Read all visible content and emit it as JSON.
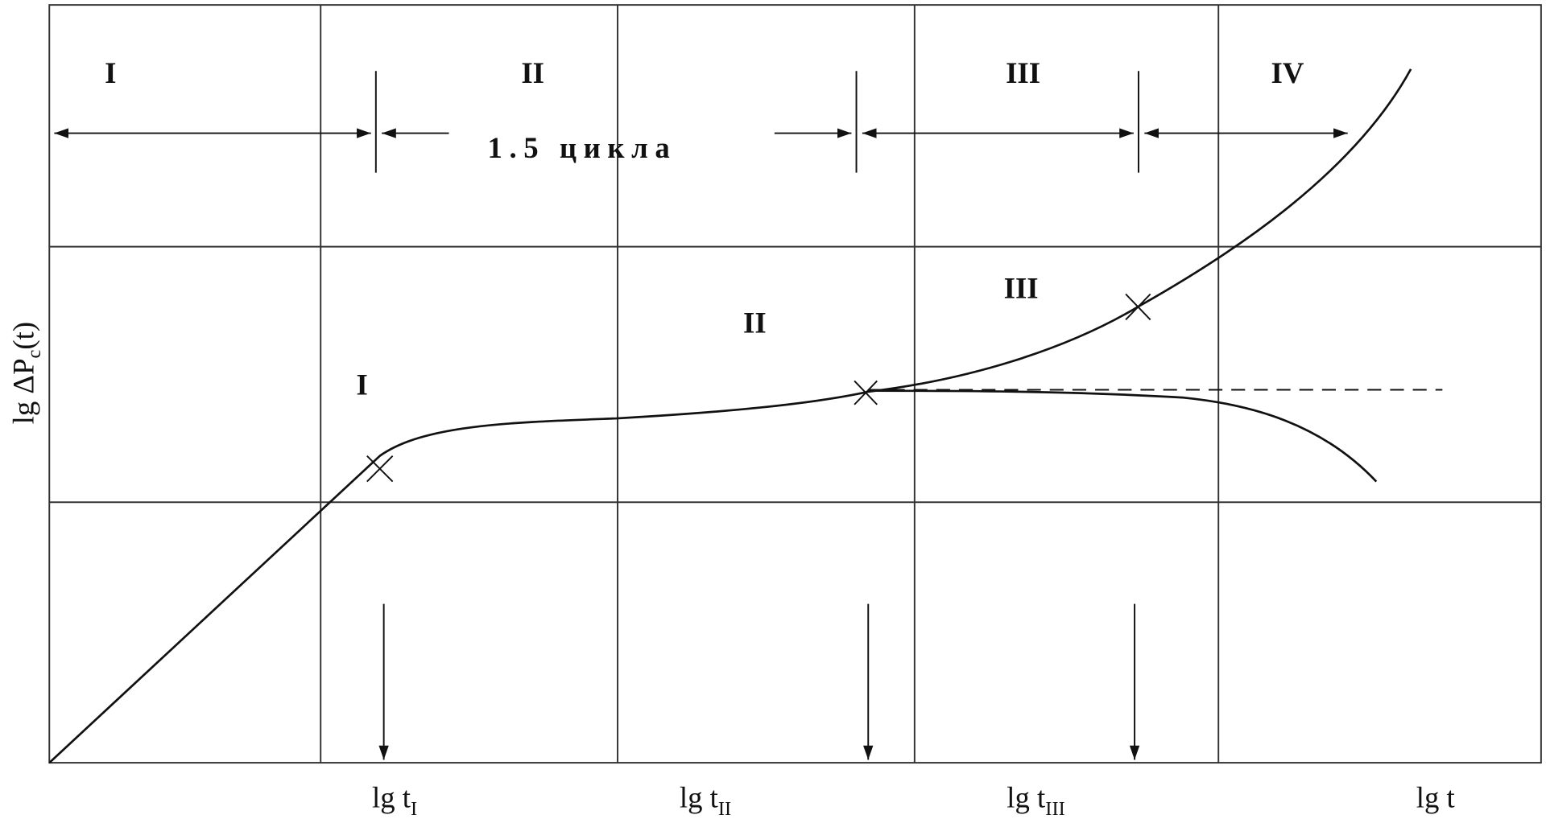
{
  "regions_top": [
    "I",
    "II",
    "III",
    "IV"
  ],
  "interval_label": "1.5 цикла",
  "curve_labels": [
    "I",
    "II",
    "III"
  ],
  "y_axis": {
    "main": "lg ΔP",
    "sub": "c",
    "tail": "(t)"
  },
  "x_labels": [
    {
      "main": "lg t",
      "sub": "I"
    },
    {
      "main": "lg t",
      "sub": "II"
    },
    {
      "main": "lg t",
      "sub": "III"
    },
    {
      "main": "lg t"
    }
  ]
}
